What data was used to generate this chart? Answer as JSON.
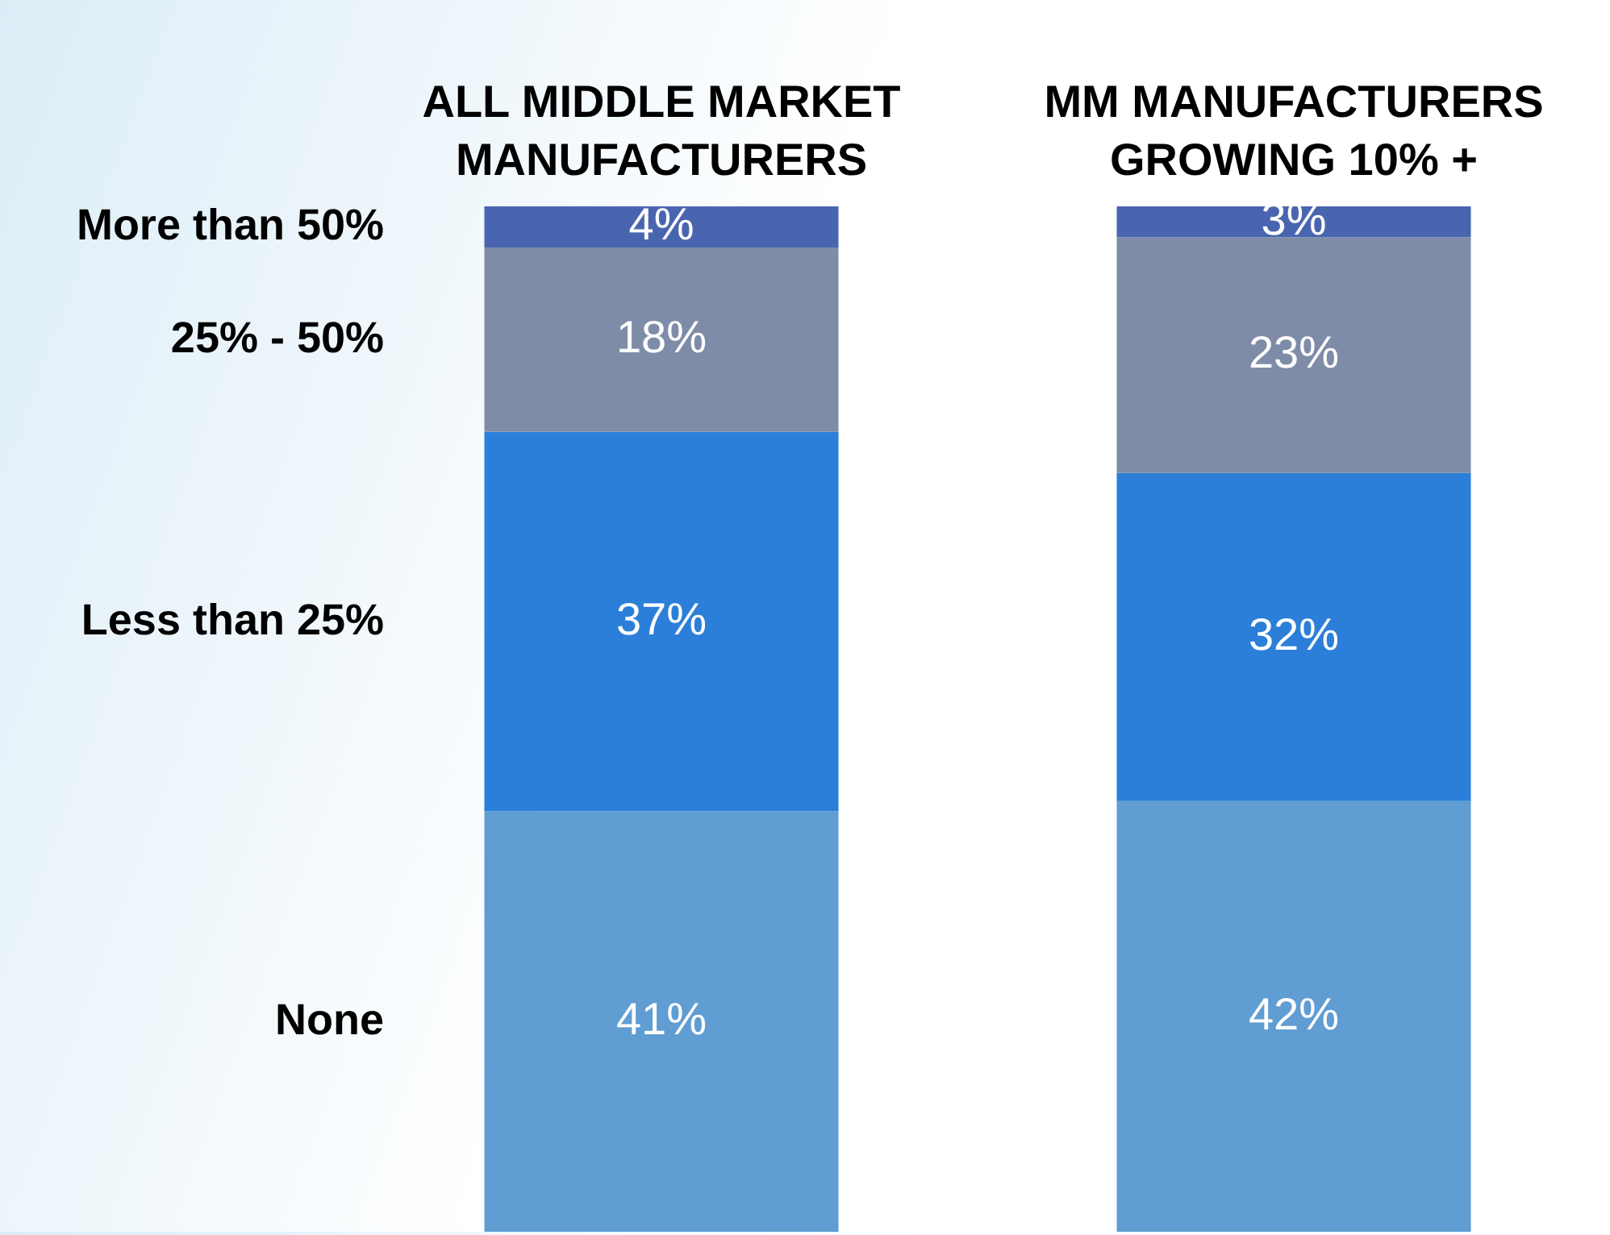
{
  "chart_data": {
    "type": "bar",
    "stacked": true,
    "legend": false,
    "categories": [
      "ALL MIDDLE MARKET MANUFACTURERS",
      "MM MANUFACTURERS GROWING 10% +"
    ],
    "series": [
      {
        "name": "None",
        "color": "#5f9dd2",
        "values": [
          41,
          42
        ],
        "value_labels": [
          "41%",
          "42%"
        ]
      },
      {
        "name": "Less than 25%",
        "color": "#2b7fd8",
        "values": [
          37,
          32
        ],
        "value_labels": [
          "37%",
          "32%"
        ]
      },
      {
        "name": "25% - 50%",
        "color": "#7f8ca8",
        "values": [
          18,
          23
        ],
        "value_labels": [
          "18%",
          "23%"
        ]
      },
      {
        "name": "More than 50%",
        "color": "#4a65b0",
        "values": [
          4,
          3
        ],
        "value_labels": [
          "4%",
          "3%"
        ]
      }
    ]
  }
}
